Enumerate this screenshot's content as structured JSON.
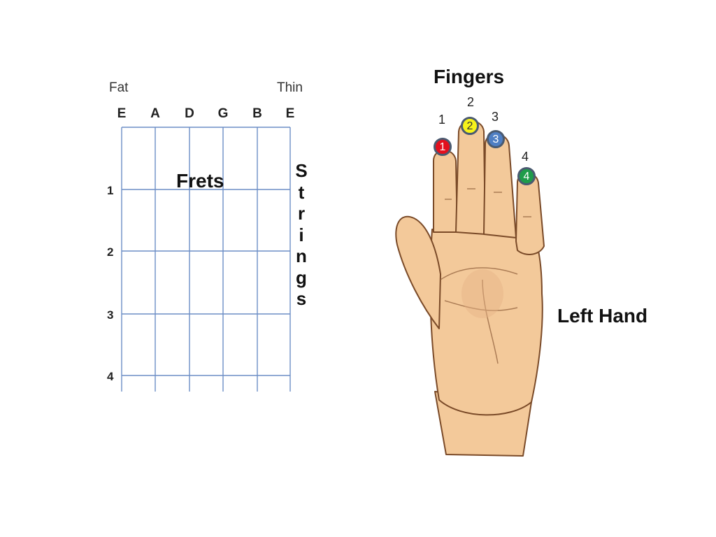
{
  "strings": {
    "fat_label": "Fat",
    "thin_label": "Thin",
    "names": [
      "E",
      "A",
      "D",
      "G",
      "B",
      "E"
    ]
  },
  "frets": {
    "title": "Frets",
    "numbers": [
      "1",
      "2",
      "3",
      "4"
    ]
  },
  "strings_vertical": {
    "letters": [
      "S",
      "t",
      "r",
      "i",
      "n",
      "g",
      "s"
    ]
  },
  "fingers": {
    "title": "Fingers",
    "numbers": [
      "1",
      "2",
      "3",
      "4"
    ],
    "dots": [
      {
        "label": "1",
        "color": "#e3101e",
        "text_color": "#ffffff"
      },
      {
        "label": "2",
        "color": "#f6f21a",
        "text_color": "#333333"
      },
      {
        "label": "3",
        "color": "#4f7fc4",
        "text_color": "#ffffff"
      },
      {
        "label": "4",
        "color": "#1f9c4a",
        "text_color": "#ffffff"
      }
    ]
  },
  "hand": {
    "label": "Left Hand",
    "skin_color": "#f3c99a",
    "line_color": "#7a4a28"
  },
  "colors": {
    "grid_line": "#6d8ec6"
  }
}
